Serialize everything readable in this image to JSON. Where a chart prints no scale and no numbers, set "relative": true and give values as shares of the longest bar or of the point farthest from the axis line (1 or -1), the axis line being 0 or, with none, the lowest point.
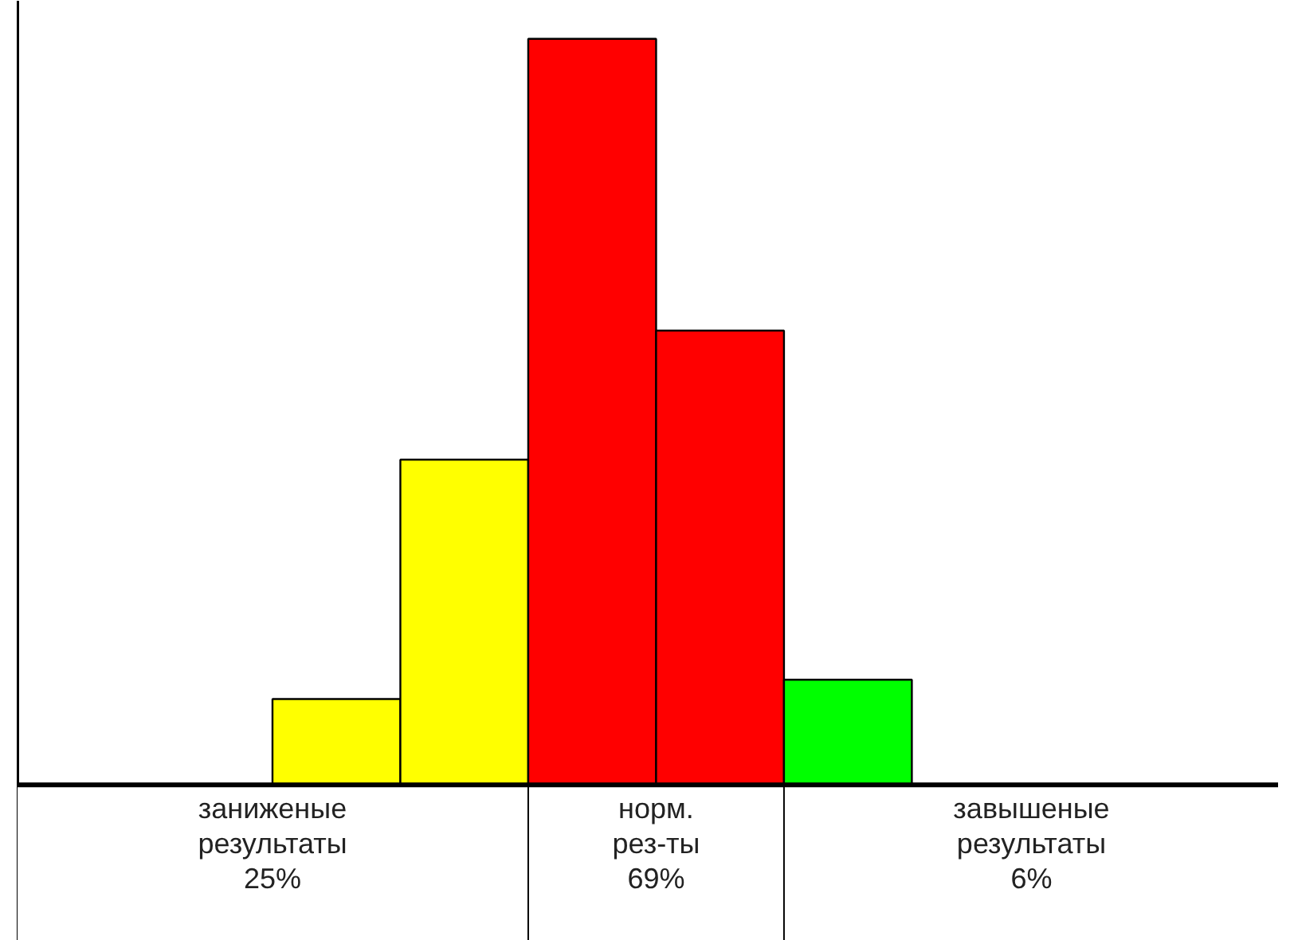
{
  "chart_data": {
    "type": "bar",
    "relative": true,
    "tick_labels": false,
    "grid": false,
    "categories": [
      null,
      null,
      null,
      null,
      null
    ],
    "values": [
      0.115,
      0.436,
      1,
      0.609,
      0.141
    ],
    "colors": [
      "#ffff00",
      "#ffff00",
      "#ff0000",
      "#ff0000",
      "#00ff00"
    ],
    "annotations": [
      "заниженые\nрезультаты\n25%",
      "норм.\nрез-ты\n69%",
      "завышеные\nрезультаты\n6%"
    ]
  }
}
